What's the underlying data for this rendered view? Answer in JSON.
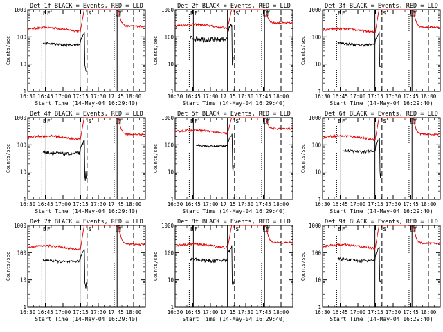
{
  "colors": {
    "events": "#000000",
    "lld": "#e00000",
    "axes": "#000000"
  },
  "chart_data": {
    "type": "line",
    "layout": "3x3 grid of log-scale time series panels",
    "yscale": "log",
    "ylim": [
      1,
      1000
    ],
    "ytick_values": [
      1,
      10,
      100,
      1000
    ],
    "ytick_labels": [
      "1",
      "10",
      "100",
      "1000"
    ],
    "xlim_minutes": [
      990,
      1090
    ],
    "xtick_values": [
      990,
      1005,
      1020,
      1035,
      1050,
      1065,
      1080
    ],
    "xtick_labels": [
      "16:30",
      "16:45",
      "17:00",
      "17:15",
      "17:30",
      "17:45",
      "18:00"
    ],
    "xlabel": "Start Time (14-May-04 16:29:40)",
    "ylabel": "Counts/sec",
    "marker_labels": {
      "E": "E",
      "F": "F",
      "S": "S"
    },
    "panels": [
      {
        "title": "Det 1f BLACK = Events, RED = LLD",
        "events_level": 55,
        "lld_level": 190,
        "events_start": 1003,
        "noise": 0.1,
        "events_jump": 1.35
      },
      {
        "title": "Det 2f BLACK = Events, RED = LLD",
        "events_level": 85,
        "lld_level": 250,
        "events_start": 1003,
        "noise": 0.22,
        "events_jump": 1.9
      },
      {
        "title": "Det 3f BLACK = Events, RED = LLD",
        "events_level": 55,
        "lld_level": 175,
        "events_start": 1003,
        "noise": 0.1,
        "events_jump": 1.4
      },
      {
        "title": "Det 4f BLACK = Events, RED = LLD",
        "events_level": 50,
        "lld_level": 185,
        "events_start": 1003,
        "noise": 0.14,
        "events_jump": 1.5
      },
      {
        "title": "Det 5f BLACK = Events, RED = LLD",
        "events_level": 95,
        "lld_level": 300,
        "events_start": 1008,
        "noise": 0.08,
        "events_jump": 1.3
      },
      {
        "title": "Det 6f BLACK = Events, RED = LLD",
        "events_level": 60,
        "lld_level": 185,
        "events_start": 1008,
        "noise": 0.1,
        "events_jump": 1.5
      },
      {
        "title": "Det 7f BLACK = Events, RED = LLD",
        "events_level": 50,
        "lld_level": 155,
        "events_start": 1003,
        "noise": 0.1,
        "events_jump": 1.4
      },
      {
        "title": "Det 8f BLACK = Events, RED = LLD",
        "events_level": 55,
        "lld_level": 180,
        "events_start": 1003,
        "noise": 0.15,
        "events_jump": 1.7
      },
      {
        "title": "Det 9f BLACK = Events, RED = LLD",
        "events_level": 55,
        "lld_level": 170,
        "events_start": 1003,
        "noise": 0.12,
        "events_jump": 1.5
      }
    ],
    "vertical_lines": [
      {
        "x": 1002.0,
        "style": "dotted",
        "label": "E"
      },
      {
        "x": 1005.5,
        "style": "solid",
        "label": "F"
      },
      {
        "x": 1034.5,
        "style": "solid",
        "label": ""
      },
      {
        "x": 1040.5,
        "style": "dashed",
        "label": "S"
      },
      {
        "x": 1063.5,
        "style": "dotted",
        "label": ""
      },
      {
        "x": 1066.0,
        "style": "solid",
        "label": "F"
      },
      {
        "x": 1080.0,
        "style": "dashed",
        "label": ""
      }
    ],
    "lld_rise": [
      1035,
      1038
    ],
    "lld_peak": 1000,
    "lld_return": 1067,
    "events_end": 1040
  }
}
